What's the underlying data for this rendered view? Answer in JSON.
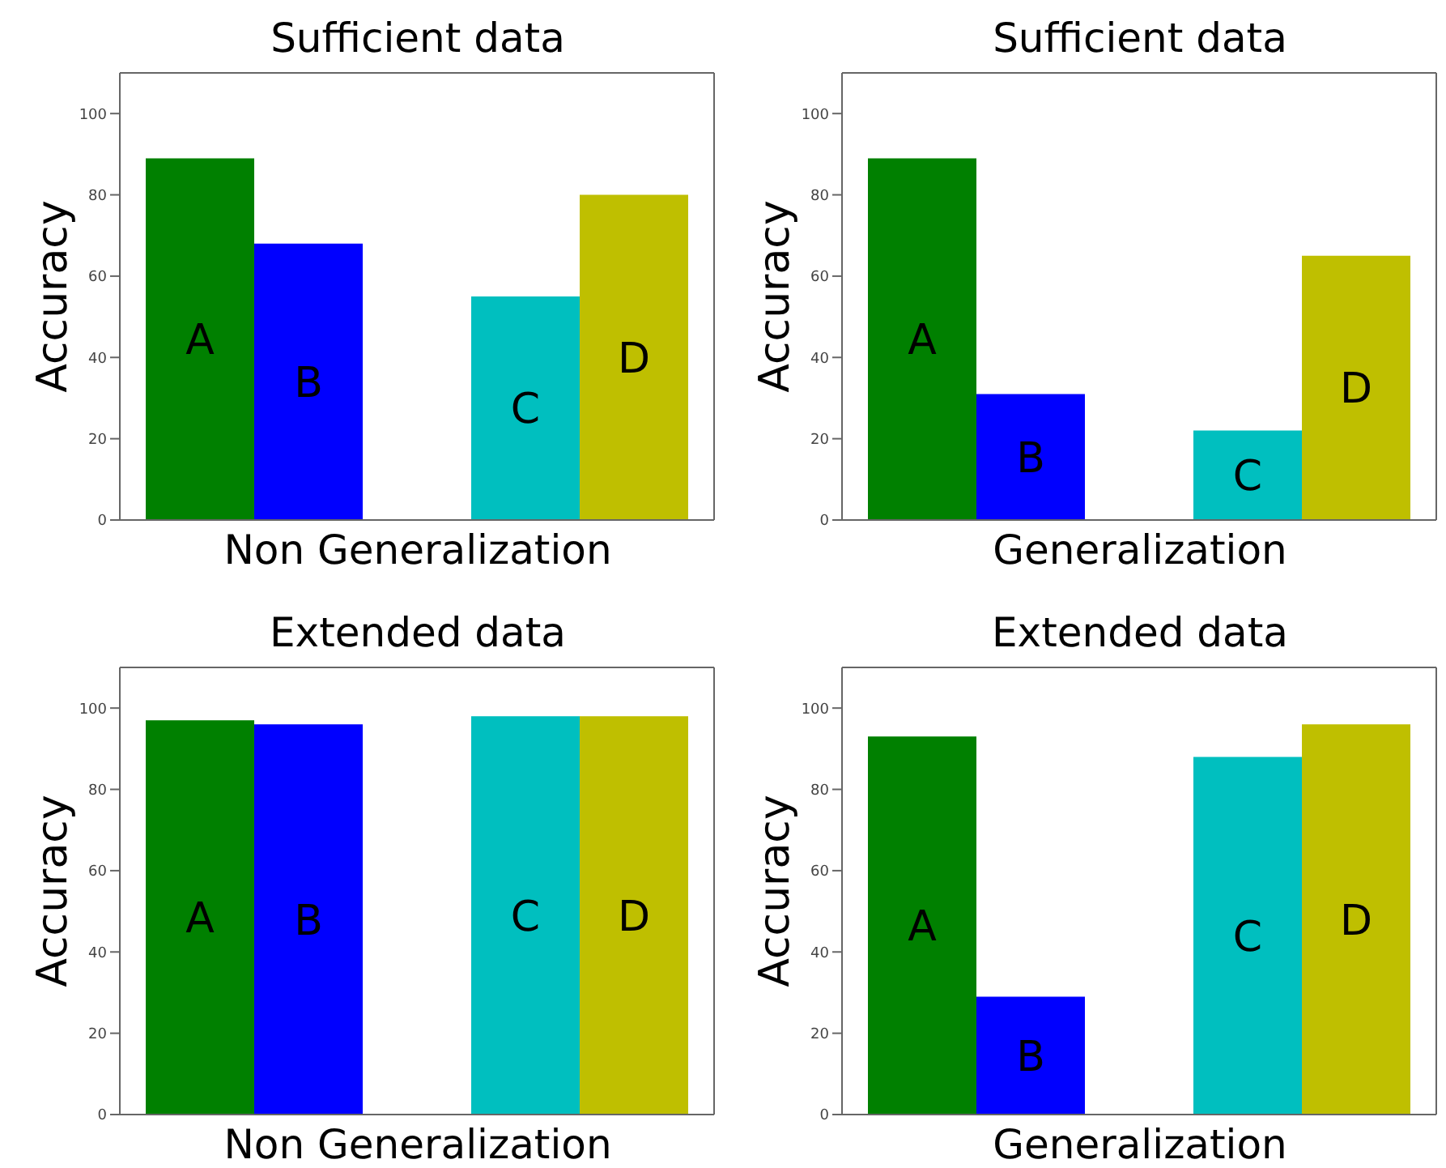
{
  "chart_data": [
    {
      "type": "bar",
      "title": "Sufficient data",
      "xlabel": "Non Generalization",
      "ylabel": "Accuracy",
      "categories": [
        null,
        null,
        null,
        null,
        null
      ],
      "values": [
        89,
        68,
        null,
        55,
        80
      ],
      "colors": [
        "#008000",
        "#0000ff",
        null,
        "#00bfbf",
        "#bfbf00"
      ],
      "value_labels": [
        "A",
        "B",
        null,
        "C",
        "D"
      ],
      "ylim": [
        0,
        110
      ],
      "yticks": [
        0,
        20,
        40,
        60,
        80,
        100
      ],
      "tick_labels": "y"
    },
    {
      "type": "bar",
      "title": "Sufficient data",
      "xlabel": "Generalization",
      "ylabel": "Accuracy",
      "categories": [
        null,
        null,
        null,
        null,
        null
      ],
      "values": [
        89,
        31,
        null,
        22,
        65
      ],
      "colors": [
        "#008000",
        "#0000ff",
        null,
        "#00bfbf",
        "#bfbf00"
      ],
      "value_labels": [
        "A",
        "B",
        null,
        "C",
        "D"
      ],
      "ylim": [
        0,
        110
      ],
      "yticks": [
        0,
        20,
        40,
        60,
        80,
        100
      ],
      "tick_labels": "y"
    },
    {
      "type": "bar",
      "title": "Extended data",
      "xlabel": "Non Generalization",
      "ylabel": "Accuracy",
      "categories": [
        null,
        null,
        null,
        null,
        null
      ],
      "values": [
        97,
        96,
        null,
        98,
        98
      ],
      "colors": [
        "#008000",
        "#0000ff",
        null,
        "#00bfbf",
        "#bfbf00"
      ],
      "value_labels": [
        "A",
        "B",
        null,
        "C",
        "D"
      ],
      "ylim": [
        0,
        110
      ],
      "yticks": [
        0,
        20,
        40,
        60,
        80,
        100
      ],
      "tick_labels": "y"
    },
    {
      "type": "bar",
      "title": "Extended data",
      "xlabel": "Generalization",
      "ylabel": "Accuracy",
      "categories": [
        null,
        null,
        null,
        null,
        null
      ],
      "values": [
        93,
        29,
        null,
        88,
        96
      ],
      "colors": [
        "#008000",
        "#0000ff",
        null,
        "#00bfbf",
        "#bfbf00"
      ],
      "value_labels": [
        "A",
        "B",
        null,
        "C",
        "D"
      ],
      "ylim": [
        0,
        110
      ],
      "yticks": [
        0,
        20,
        40,
        60,
        80,
        100
      ],
      "tick_labels": "y"
    }
  ]
}
